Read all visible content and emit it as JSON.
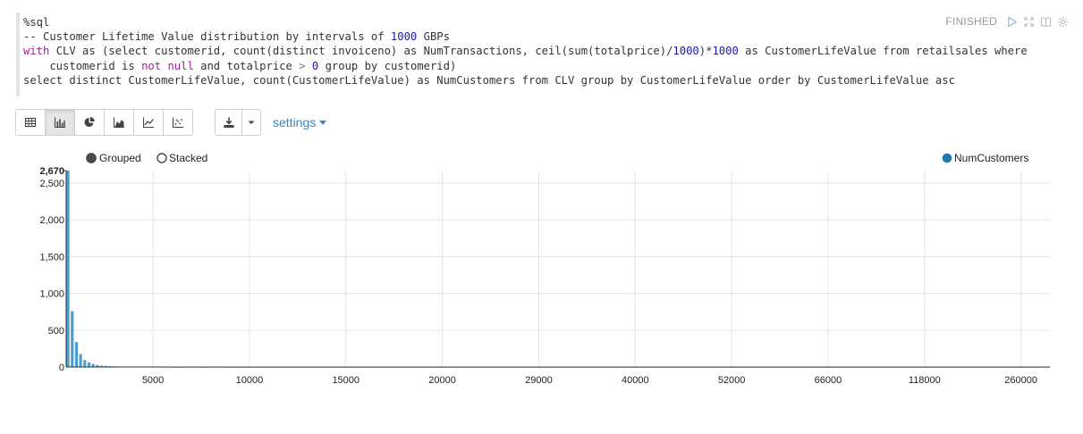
{
  "paragraph": {
    "status": "FINISHED",
    "icons": [
      "run-icon",
      "expand-icon",
      "book-icon",
      "gear-icon"
    ]
  },
  "code": {
    "lines": [
      [
        {
          "t": "%sql",
          "c": ""
        }
      ],
      [
        {
          "t": "-- Customer Lifetime Value distribution by intervals of ",
          "c": ""
        },
        {
          "t": "1000",
          "c": "n"
        },
        {
          "t": " GBPs",
          "c": ""
        }
      ],
      [
        {
          "t": "with",
          "c": "k"
        },
        {
          "t": " CLV as (select customerid, count(distinct invoiceno) as NumTransactions, ceil(sum(totalprice)/",
          "c": ""
        },
        {
          "t": "1000",
          "c": "n"
        },
        {
          "t": ")*",
          "c": ""
        },
        {
          "t": "1000",
          "c": "n"
        },
        {
          "t": " as CustomerLifeValue from retailsales where",
          "c": ""
        }
      ],
      [
        {
          "t": "    customerid is ",
          "c": ""
        },
        {
          "t": "not",
          "c": "k"
        },
        {
          "t": " ",
          "c": ""
        },
        {
          "t": "null",
          "c": "k"
        },
        {
          "t": " and totalprice ",
          "c": ""
        },
        {
          "t": ">",
          "c": "op"
        },
        {
          "t": " ",
          "c": ""
        },
        {
          "t": "0",
          "c": "n"
        },
        {
          "t": " group by customerid)",
          "c": ""
        }
      ],
      [
        {
          "t": "select distinct CustomerLifeValue, count(CustomerLifeValue) as NumCustomers from CLV group by CustomerLifeValue order by CustomerLifeValue asc",
          "c": ""
        }
      ]
    ]
  },
  "toolbar": {
    "buttons": [
      "table-icon",
      "bar-chart-icon",
      "pie-chart-icon",
      "area-chart-icon",
      "line-chart-icon",
      "scatter-chart-icon"
    ],
    "active": "bar-chart-icon",
    "settings_label": "settings"
  },
  "chart_data": {
    "type": "bar",
    "mode_options": [
      "Grouped",
      "Stacked"
    ],
    "selected_mode": "Grouped",
    "legend": {
      "position": "top-right"
    },
    "series": [
      {
        "name": "NumCustomers",
        "color": "#1f77b4",
        "values": [
          2670,
          760,
          340,
          175,
          95,
          62,
          42,
          28,
          20,
          15,
          12,
          10,
          8,
          7,
          6,
          5,
          5,
          4,
          4,
          3,
          3,
          3,
          3,
          2,
          2,
          2,
          2,
          2,
          2,
          2,
          2,
          2,
          2,
          2,
          2,
          2,
          2,
          2,
          2,
          2,
          1,
          1,
          1,
          1,
          1,
          1,
          1,
          1,
          1,
          1,
          1,
          1,
          1,
          1,
          1,
          1,
          1,
          1,
          1,
          1,
          1,
          1,
          1,
          1,
          1,
          1,
          1,
          1,
          1,
          1,
          1,
          1,
          1,
          1,
          1,
          1,
          1,
          1,
          1,
          1,
          1,
          1,
          1,
          1,
          1,
          1,
          1,
          1,
          1,
          1,
          1,
          1,
          1,
          1,
          1,
          1,
          1,
          1,
          1,
          1,
          1,
          1,
          1,
          1,
          1,
          1,
          1,
          1,
          1,
          1,
          1,
          1,
          1,
          1,
          1,
          1,
          1,
          1,
          1,
          1,
          1,
          1,
          1,
          1,
          1,
          1,
          1,
          1,
          1,
          1,
          1,
          1,
          1,
          1,
          1,
          1,
          1,
          1,
          1,
          1,
          1,
          1,
          1,
          1,
          1,
          1,
          1,
          1,
          1,
          1,
          1,
          1,
          1,
          1,
          1,
          1,
          1,
          1,
          1,
          1,
          1,
          1,
          1,
          1,
          1,
          1,
          1,
          1,
          1,
          1,
          1,
          1,
          1,
          1,
          1,
          1,
          1,
          1,
          1,
          1,
          1,
          1,
          1,
          1,
          1,
          1,
          1,
          1,
          1,
          1,
          1,
          1,
          1,
          1,
          1,
          1,
          1,
          1,
          1,
          1,
          1,
          1,
          1,
          1,
          1,
          1,
          1,
          1,
          1,
          1,
          1,
          1,
          1,
          1,
          1,
          1,
          1,
          1,
          1,
          1,
          1,
          1,
          1,
          1,
          1,
          1,
          1,
          1,
          1,
          1,
          1,
          1,
          1,
          1,
          1
        ]
      }
    ],
    "x_tick_labels": [
      "5000",
      "10000",
      "15000",
      "20000",
      "29000",
      "40000",
      "52000",
      "66000",
      "118000",
      "260000"
    ],
    "x_tick_index": [
      4,
      9,
      14,
      19,
      24,
      29,
      34,
      39,
      44,
      49
    ],
    "x_tick_count_basis": 51,
    "y_ticks": [
      0,
      500,
      1000,
      1500,
      2000,
      2500
    ],
    "y_max_label": "2,670",
    "y_tick_labels": [
      "0",
      "500",
      "1,000",
      "1,500",
      "2,000",
      "2,500"
    ],
    "ylim": [
      0,
      2670
    ],
    "grid": true
  }
}
